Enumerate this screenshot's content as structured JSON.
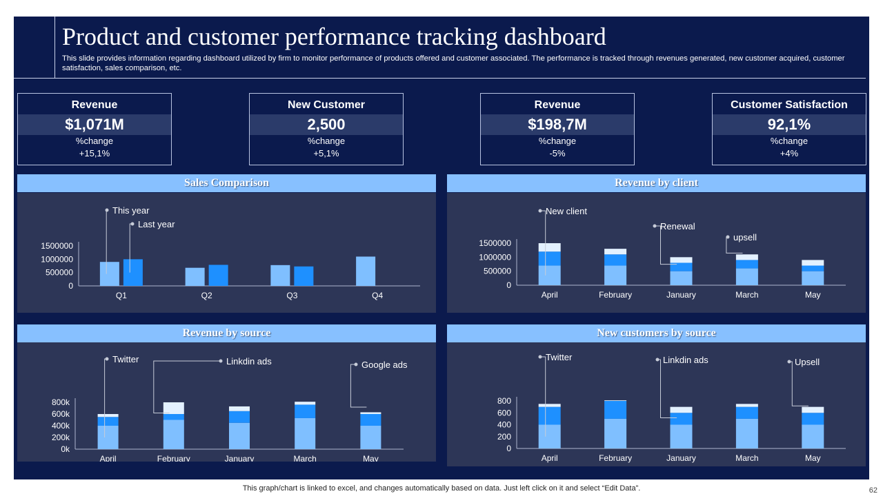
{
  "title": "Product and customer performance tracking dashboard",
  "subtitle": "This slide provides information regarding dashboard utilized by firm to  monitor performance of products offered and customer associated. The performance is tracked through revenues generated, new customer acquired, customer satisfaction, sales comparison, etc.",
  "kpis": [
    {
      "label": "Revenue",
      "value": "$1,071M",
      "sub": "%change",
      "change": "+15,1%"
    },
    {
      "label": "New Customer",
      "value": "2,500",
      "sub": "%change",
      "change": "+5,1%"
    },
    {
      "label": "Revenue",
      "value": "$198,7M",
      "sub": "%change",
      "change": "-5%"
    },
    {
      "label": "Customer Satisfaction",
      "value": "92,1%",
      "sub": "%change",
      "change": "+4%"
    }
  ],
  "panels": {
    "sales": {
      "title": "Sales Comparison"
    },
    "client": {
      "title": "Revenue by client"
    },
    "source": {
      "title": "Revenue by source"
    },
    "newcust": {
      "title": "New customers by source"
    }
  },
  "colors": {
    "light": "#7fbfff",
    "mid": "#1e90ff",
    "pale": "#e3f1ff",
    "panel": "#2d3657",
    "head": "#87c0ff",
    "navy": "#0b1a4d"
  },
  "chart_data": [
    {
      "id": "sales",
      "type": "bar",
      "title": "Sales Comparison",
      "categories": [
        "Q1",
        "Q2",
        "Q3",
        "Q4"
      ],
      "series": [
        {
          "name": "This year",
          "values": [
            900000,
            680000,
            780000,
            1100000
          ]
        },
        {
          "name": "Last year",
          "values": [
            1000000,
            790000,
            730000,
            null
          ]
        }
      ],
      "yticks": [
        "0",
        "500000",
        "1000000",
        "1500000"
      ],
      "ylim": [
        0,
        1500000
      ],
      "callouts": [
        "This year",
        "Last year"
      ]
    },
    {
      "id": "client",
      "type": "bar",
      "stacked": true,
      "title": "Revenue by client",
      "categories": [
        "April",
        "February",
        "January",
        "March",
        "May"
      ],
      "series": [
        {
          "name": "New client",
          "values": [
            700000,
            700000,
            500000,
            600000,
            500000
          ]
        },
        {
          "name": "Renewal",
          "values": [
            500000,
            400000,
            300000,
            300000,
            200000
          ]
        },
        {
          "name": "upsell",
          "values": [
            300000,
            200000,
            200000,
            200000,
            200000
          ]
        }
      ],
      "yticks": [
        "0",
        "500000",
        "1000000",
        "1500000"
      ],
      "ylim": [
        0,
        1500000
      ],
      "callouts": [
        "New client",
        "Renewal",
        "upsell"
      ]
    },
    {
      "id": "source",
      "type": "bar",
      "stacked": true,
      "title": "Revenue by source",
      "categories": [
        "April",
        "February",
        "January",
        "March",
        "May"
      ],
      "series": [
        {
          "name": "Twitter",
          "values": [
            400000,
            500000,
            450000,
            530000,
            400000
          ]
        },
        {
          "name": "Linkdin ads",
          "values": [
            150000,
            100000,
            200000,
            230000,
            200000
          ]
        },
        {
          "name": "Google ads",
          "values": [
            50000,
            200000,
            80000,
            50000,
            30000
          ]
        }
      ],
      "yticks": [
        "0k",
        "200k",
        "400k",
        "600k",
        "800k"
      ],
      "ylim": [
        0,
        800000
      ],
      "callouts": [
        "Twitter",
        "Linkdin ads",
        "Google ads"
      ]
    },
    {
      "id": "newcust",
      "type": "bar",
      "stacked": true,
      "title": "New customers by source",
      "categories": [
        "April",
        "February",
        "January",
        "March",
        "May"
      ],
      "series": [
        {
          "name": "Twitter",
          "values": [
            400,
            500,
            400,
            500,
            400
          ]
        },
        {
          "name": "Linkdin ads",
          "values": [
            300,
            300,
            200,
            200,
            200
          ]
        },
        {
          "name": "Upsell",
          "values": [
            50,
            10,
            100,
            50,
            100
          ]
        }
      ],
      "yticks": [
        "0",
        "200",
        "400",
        "600",
        "800"
      ],
      "ylim": [
        0,
        800
      ],
      "callouts": [
        "Twitter",
        "Linkdin ads",
        "Upsell"
      ]
    }
  ],
  "footer": "This graph/chart is linked to excel,  and changes automatically based on data. Just left click on it and select “Edit Data”.",
  "page_number": "62"
}
